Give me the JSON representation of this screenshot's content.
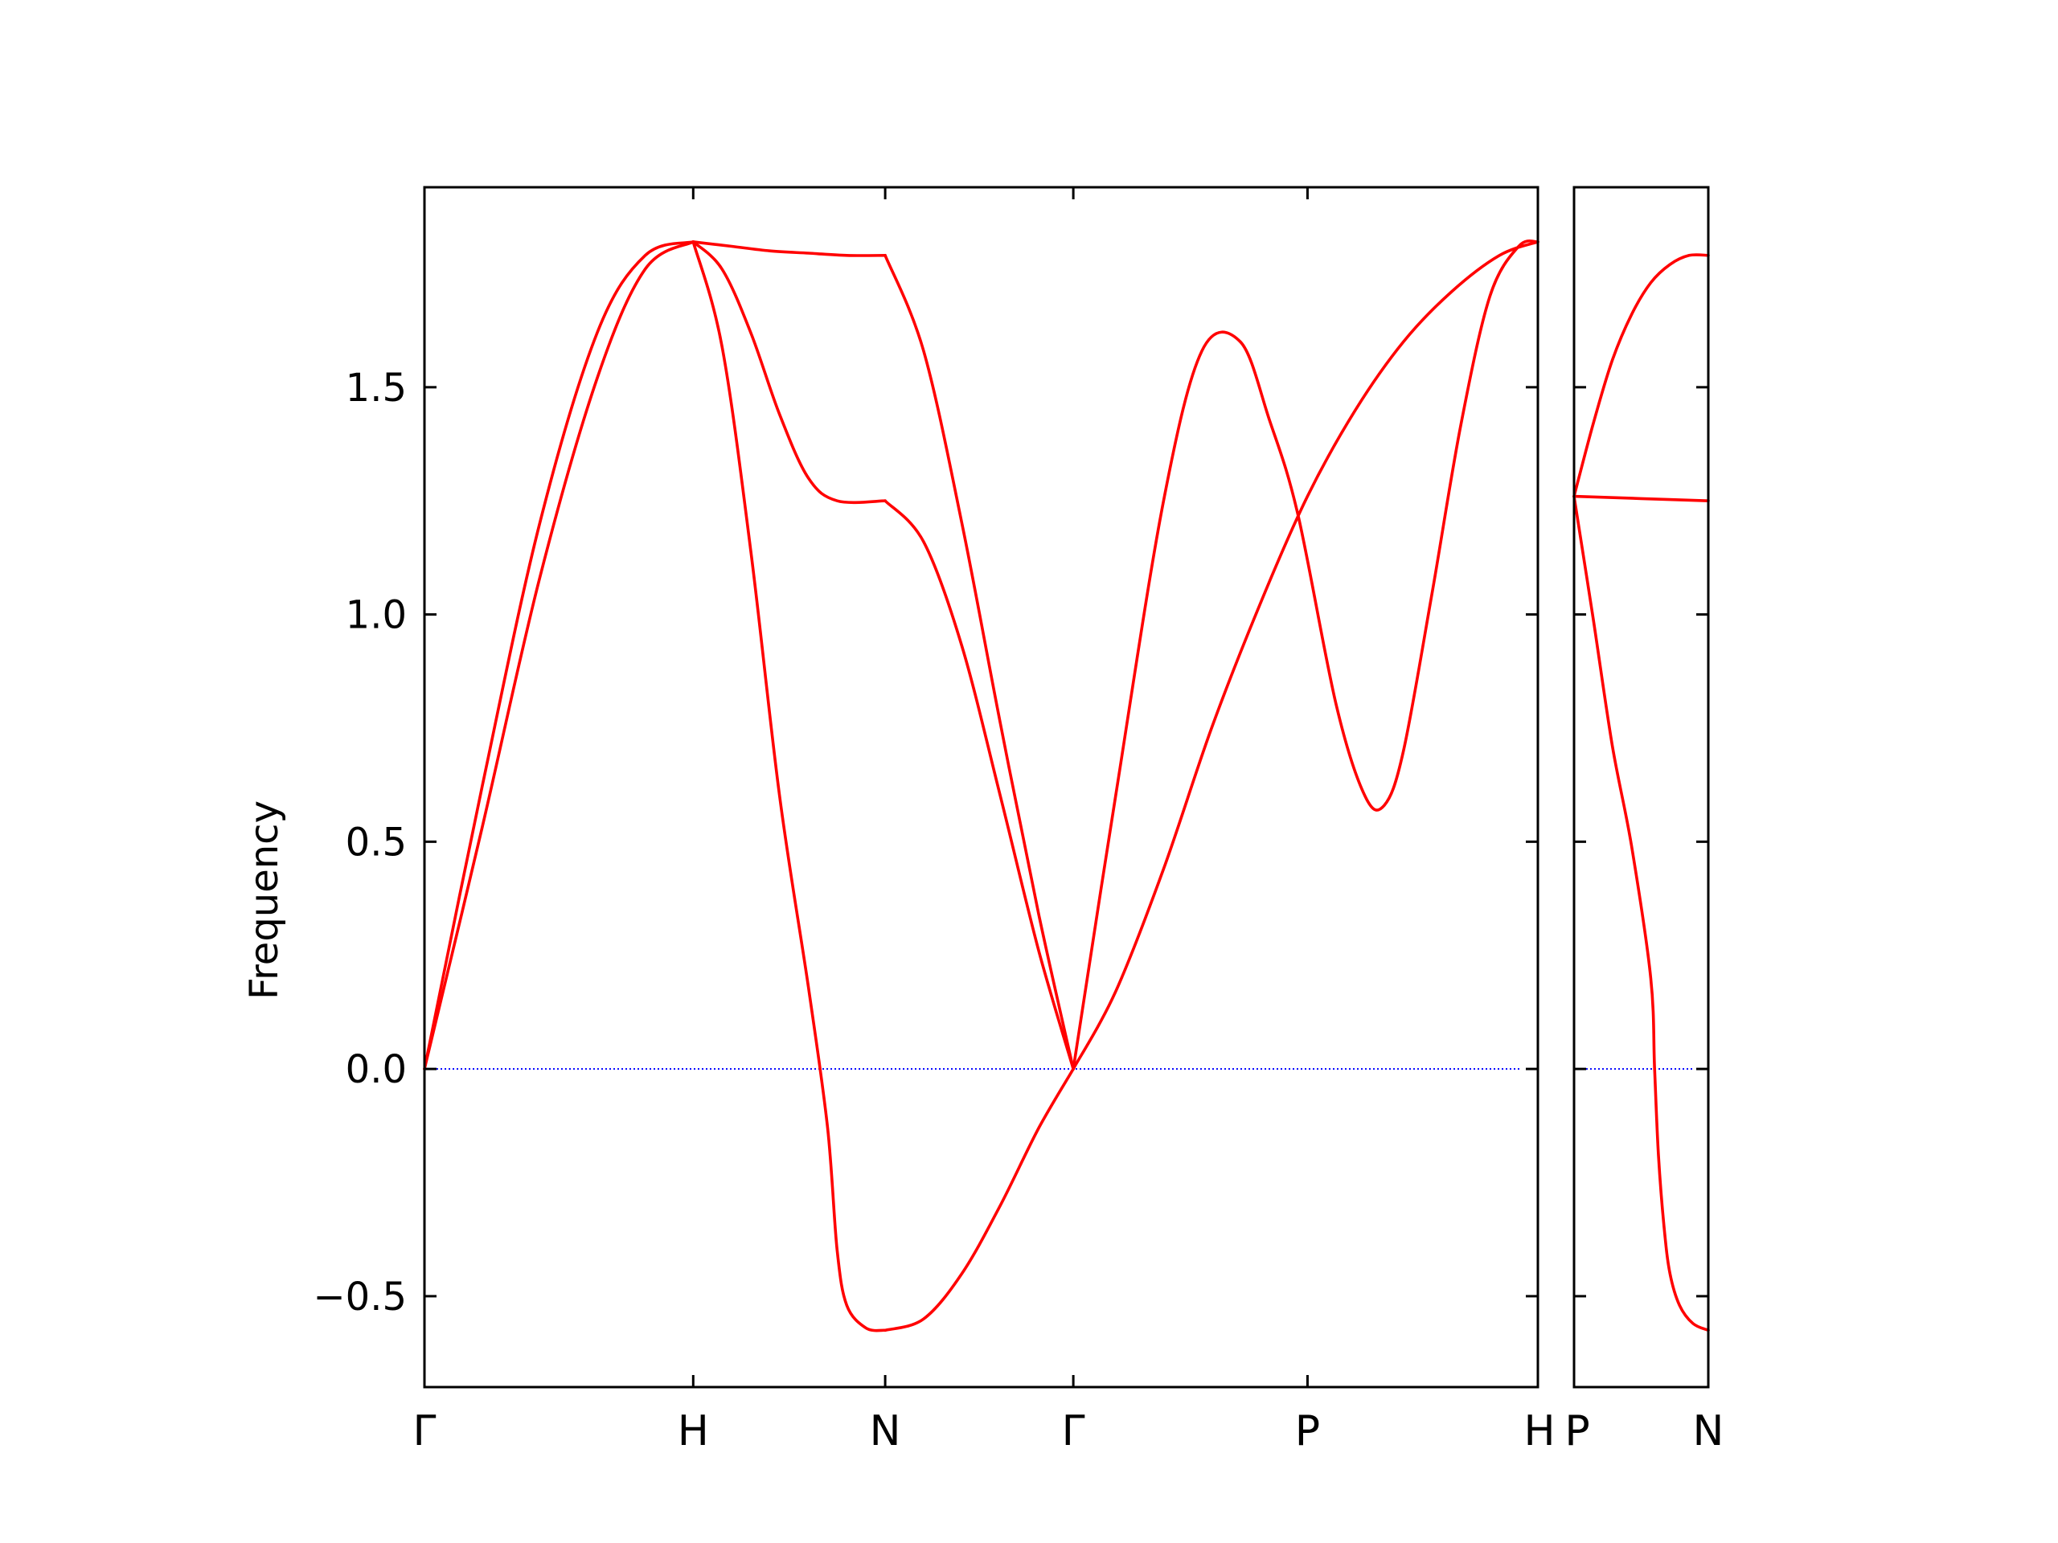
{
  "chart_data": {
    "type": "line",
    "ylabel": "Frequency",
    "ylim": [
      -0.7,
      1.94
    ],
    "yticks": [
      {
        "value": -0.5,
        "label": "−0.5"
      },
      {
        "value": 0.0,
        "label": "0.0"
      },
      {
        "value": 0.5,
        "label": "0.5"
      },
      {
        "value": 1.0,
        "label": "1.0"
      },
      {
        "value": 1.5,
        "label": "1.5"
      }
    ],
    "line_color": "#ff0000",
    "zero_line_color": "#0000ff",
    "panels": [
      {
        "xlim": [
          0,
          5.8
        ],
        "xticks": [
          {
            "value": 0,
            "label": "Γ"
          },
          {
            "value": 1.4,
            "label": "H"
          },
          {
            "value": 2.4,
            "label": "N"
          },
          {
            "value": 3.38,
            "label": "Γ"
          },
          {
            "value": 4.6,
            "label": "P"
          },
          {
            "value": 5.8,
            "label": "H"
          }
        ],
        "series": [
          {
            "x": [
              0,
              0.3,
              0.6,
              0.9,
              1.15,
              1.4
            ],
            "y": [
              0,
              0.62,
              1.2,
              1.62,
              1.79,
              1.82
            ]
          },
          {
            "x": [
              0,
              0.3,
              0.6,
              0.9,
              1.15,
              1.4
            ],
            "y": [
              0,
              0.53,
              1.08,
              1.52,
              1.76,
              1.82
            ]
          },
          {
            "x": [
              1.4,
              1.55,
              1.7,
              1.85,
              2.0,
              2.1,
              2.15,
              2.2,
              2.3,
              2.4
            ],
            "y": [
              1.82,
              1.59,
              1.14,
              0.6,
              0.18,
              -0.13,
              -0.4,
              -0.52,
              -0.57,
              -0.575
            ]
          },
          {
            "x": [
              1.4,
              1.55,
              1.7,
              1.85,
              2.0,
              2.15,
              2.4
            ],
            "y": [
              1.82,
              1.76,
              1.62,
              1.44,
              1.3,
              1.25,
              1.25
            ]
          },
          {
            "x": [
              1.4,
              1.6,
              1.8,
              2.0,
              2.2,
              2.4
            ],
            "y": [
              1.82,
              1.81,
              1.8,
              1.795,
              1.79,
              1.79
            ]
          },
          {
            "x": [
              2.4,
              2.6,
              2.8,
              3.0,
              3.2,
              3.38
            ],
            "y": [
              1.79,
              1.58,
              1.2,
              0.76,
              0.34,
              0.0
            ]
          },
          {
            "x": [
              2.4,
              2.6,
              2.8,
              3.0,
              3.2,
              3.38
            ],
            "y": [
              1.25,
              1.16,
              0.93,
              0.6,
              0.26,
              0.0
            ]
          },
          {
            "x": [
              2.4,
              2.6,
              2.8,
              3.0,
              3.2,
              3.38
            ],
            "y": [
              -0.575,
              -0.55,
              -0.45,
              -0.3,
              -0.13,
              0.0
            ]
          },
          {
            "x": [
              3.38,
              3.6,
              3.85,
              4.05,
              4.25,
              4.4,
              4.55,
              4.75,
              4.9,
              5.0,
              5.1,
              5.25,
              5.4,
              5.55,
              5.7,
              5.8
            ],
            "y": [
              0.0,
              0.6,
              1.25,
              1.58,
              1.6,
              1.43,
              1.22,
              0.8,
              0.6,
              0.58,
              0.7,
              1.05,
              1.42,
              1.7,
              1.81,
              1.82
            ]
          },
          {
            "x": [
              3.38,
              3.6,
              3.85,
              4.1,
              4.35,
              4.6,
              4.85,
              5.1,
              5.35,
              5.6,
              5.8
            ],
            "y": [
              0.0,
              0.17,
              0.44,
              0.75,
              1.02,
              1.26,
              1.45,
              1.6,
              1.71,
              1.79,
              1.82
            ]
          }
        ]
      },
      {
        "xlim": [
          0,
          0.7
        ],
        "xticks": [
          {
            "value": 0,
            "label": "P"
          },
          {
            "value": 0.7,
            "label": "N"
          }
        ],
        "series": [
          {
            "x": [
              0,
              0.1,
              0.2,
              0.3,
              0.4,
              0.5,
              0.6,
              0.7
            ],
            "y": [
              1.26,
              1.42,
              1.56,
              1.66,
              1.73,
              1.77,
              1.79,
              1.79
            ]
          },
          {
            "x": [
              0,
              0.35,
              0.7
            ],
            "y": [
              1.26,
              1.255,
              1.25
            ]
          },
          {
            "x": [
              0,
              0.1,
              0.2,
              0.3,
              0.4,
              0.42,
              0.44,
              0.47,
              0.5,
              0.55,
              0.62,
              0.7
            ],
            "y": [
              1.26,
              0.99,
              0.71,
              0.49,
              0.2,
              0.0,
              -0.19,
              -0.35,
              -0.45,
              -0.52,
              -0.56,
              -0.575
            ]
          }
        ]
      }
    ]
  }
}
